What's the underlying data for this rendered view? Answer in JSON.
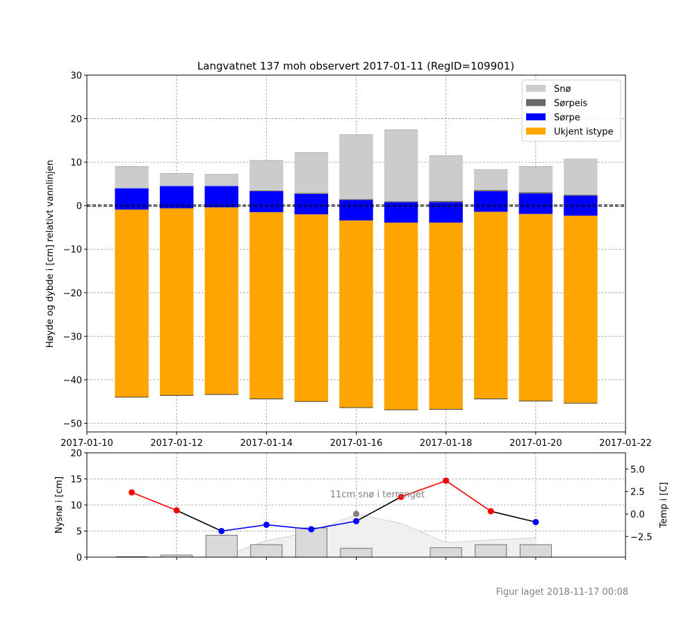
{
  "chart_data": [
    {
      "type": "bar",
      "title": "Langvatnet 137 moh observert 2017-01-11 (RegID=109901)",
      "ylabel": "Høyde og dybde i [cm] relativt vannlinjen",
      "xlim": [
        "2017-01-10",
        "2017-01-22"
      ],
      "ylim": [
        -52,
        30
      ],
      "yticks": [
        30,
        20,
        10,
        0,
        -10,
        -20,
        -30,
        -40,
        -50
      ],
      "ytick_labels": [
        "30",
        "20",
        "10",
        "0",
        "−10",
        "−20",
        "−30",
        "−40",
        "−50"
      ],
      "xticks": [
        "2017-01-10",
        "2017-01-12",
        "2017-01-14",
        "2017-01-16",
        "2017-01-18",
        "2017-01-20",
        "2017-01-22"
      ],
      "xtick_labels": [
        "2017-01-10",
        "2017-01-12",
        "2017-01-14",
        "2017-01-16",
        "2017-01-18",
        "2017-01-20",
        "2017-01-22"
      ],
      "grid": true,
      "waterline": 0,
      "legend": {
        "placement": "top-right",
        "entries": [
          {
            "label": "Snø",
            "color": "#cccccc"
          },
          {
            "label": "Sørpeis",
            "color": "#696969"
          },
          {
            "label": "Sørpe",
            "color": "#0000ff"
          },
          {
            "label": "Ukjent istype",
            "color": "#ffa500"
          }
        ]
      },
      "bars": [
        {
          "date": "2017-01-11",
          "layers": [
            {
              "type": "Ukjent istype",
              "bottom": -44.0,
              "top": -0.9
            },
            {
              "type": "Sørpe",
              "bottom": -0.9,
              "top": 4.0
            },
            {
              "type": "Snø",
              "bottom": 4.0,
              "top": 9.0
            }
          ]
        },
        {
          "date": "2017-01-12",
          "layers": [
            {
              "type": "Ukjent istype",
              "bottom": -43.6,
              "top": -0.6
            },
            {
              "type": "Sørpe",
              "bottom": -0.6,
              "top": 4.5
            },
            {
              "type": "Snø",
              "bottom": 4.5,
              "top": 7.4
            }
          ]
        },
        {
          "date": "2017-01-13",
          "layers": [
            {
              "type": "Ukjent istype",
              "bottom": -43.4,
              "top": -0.4
            },
            {
              "type": "Sørpe",
              "bottom": -0.4,
              "top": 4.5
            },
            {
              "type": "Snø",
              "bottom": 4.5,
              "top": 7.2
            }
          ]
        },
        {
          "date": "2017-01-14",
          "layers": [
            {
              "type": "Ukjent istype",
              "bottom": -44.4,
              "top": -1.5
            },
            {
              "type": "Sørpe",
              "bottom": -1.5,
              "top": 3.3
            },
            {
              "type": "Sørpeis",
              "bottom": 3.3,
              "top": 3.5
            },
            {
              "type": "Snø",
              "bottom": 3.5,
              "top": 10.4
            }
          ]
        },
        {
          "date": "2017-01-15",
          "layers": [
            {
              "type": "Ukjent istype",
              "bottom": -45.0,
              "top": -2.0
            },
            {
              "type": "Sørpe",
              "bottom": -2.0,
              "top": 2.7
            },
            {
              "type": "Sørpeis",
              "bottom": 2.7,
              "top": 2.9
            },
            {
              "type": "Snø",
              "bottom": 2.9,
              "top": 12.2
            }
          ]
        },
        {
          "date": "2017-01-16",
          "layers": [
            {
              "type": "Ukjent istype",
              "bottom": -46.4,
              "top": -3.4
            },
            {
              "type": "Sørpe",
              "bottom": -3.4,
              "top": 1.3
            },
            {
              "type": "Sørpeis",
              "bottom": 1.3,
              "top": 1.5
            },
            {
              "type": "Snø",
              "bottom": 1.5,
              "top": 16.3
            }
          ]
        },
        {
          "date": "2017-01-17",
          "layers": [
            {
              "type": "Ukjent istype",
              "bottom": -46.9,
              "top": -3.9
            },
            {
              "type": "Sørpe",
              "bottom": -3.9,
              "top": 0.8
            },
            {
              "type": "Sørpeis",
              "bottom": 0.8,
              "top": 1.0
            },
            {
              "type": "Snø",
              "bottom": 1.0,
              "top": 17.4
            }
          ]
        },
        {
          "date": "2017-01-18",
          "layers": [
            {
              "type": "Ukjent istype",
              "bottom": -46.8,
              "top": -3.9
            },
            {
              "type": "Sørpe",
              "bottom": -3.9,
              "top": 0.8
            },
            {
              "type": "Sørpeis",
              "bottom": 0.8,
              "top": 1.1
            },
            {
              "type": "Snø",
              "bottom": 1.1,
              "top": 11.5
            }
          ]
        },
        {
          "date": "2017-01-19",
          "layers": [
            {
              "type": "Ukjent istype",
              "bottom": -44.4,
              "top": -1.4
            },
            {
              "type": "Sørpe",
              "bottom": -1.4,
              "top": 3.3
            },
            {
              "type": "Sørpeis",
              "bottom": 3.3,
              "top": 3.6
            },
            {
              "type": "Snø",
              "bottom": 3.6,
              "top": 8.3
            }
          ]
        },
        {
          "date": "2017-01-20",
          "layers": [
            {
              "type": "Ukjent istype",
              "bottom": -44.9,
              "top": -1.9
            },
            {
              "type": "Sørpe",
              "bottom": -1.9,
              "top": 2.8
            },
            {
              "type": "Sørpeis",
              "bottom": 2.8,
              "top": 3.1
            },
            {
              "type": "Snø",
              "bottom": 3.1,
              "top": 9.0
            }
          ]
        },
        {
          "date": "2017-01-21",
          "layers": [
            {
              "type": "Ukjent istype",
              "bottom": -45.4,
              "top": -2.3
            },
            {
              "type": "Sørpe",
              "bottom": -2.3,
              "top": 2.3
            },
            {
              "type": "Sørpeis",
              "bottom": 2.3,
              "top": 2.5
            },
            {
              "type": "Snø",
              "bottom": 2.5,
              "top": 10.7
            }
          ]
        }
      ]
    },
    {
      "type": "bar",
      "ylabel": "Nysnø i [cm]",
      "y2label": "Temp i [C]",
      "ylim": [
        0,
        20
      ],
      "yticks": [
        0,
        5,
        10,
        15,
        20
      ],
      "ytick_labels": [
        "0",
        "5",
        "10",
        "15",
        "20"
      ],
      "y2lim": [
        -4.8,
        6.8
      ],
      "y2ticks": [
        -2.5,
        0,
        2.5,
        5
      ],
      "y2tick_labels": [
        "−2.5",
        "0.0",
        "2.5",
        "5.0"
      ],
      "xlim": [
        "2017-01-10",
        "2017-01-22"
      ],
      "grid": true,
      "annotation": "11cm snø i terrenget",
      "new_snow": [
        {
          "date": "2017-01-11",
          "value": 0.1
        },
        {
          "date": "2017-01-12",
          "value": 0.4
        },
        {
          "date": "2017-01-13",
          "value": 4.2
        },
        {
          "date": "2017-01-14",
          "value": 2.4
        },
        {
          "date": "2017-01-15",
          "value": 5.6
        },
        {
          "date": "2017-01-16",
          "value": 1.7
        },
        {
          "date": "2017-01-18",
          "value": 1.8
        },
        {
          "date": "2017-01-19",
          "value": 2.4
        },
        {
          "date": "2017-01-20",
          "value": 2.4
        }
      ],
      "snow_depth": {
        "dates": [
          "2017-01-13",
          "2017-01-14",
          "2017-01-15",
          "2017-01-16",
          "2017-01-17",
          "2017-01-18",
          "2017-01-19",
          "2017-01-20"
        ],
        "values": [
          0,
          3.2,
          4.8,
          8.2,
          6.5,
          2.8,
          3.3,
          3.7
        ]
      },
      "temperature": {
        "dates": [
          "2017-01-11",
          "2017-01-12",
          "2017-01-13",
          "2017-01-14",
          "2017-01-15",
          "2017-01-16",
          "2017-01-17",
          "2017-01-18",
          "2017-01-19",
          "2017-01-20"
        ],
        "values": [
          2.4,
          0.4,
          -1.9,
          -1.2,
          -1.7,
          -0.8,
          1.9,
          3.7,
          0.3,
          -0.9
        ],
        "point_colors": [
          "red",
          "red",
          "blue",
          "blue",
          "blue",
          "blue",
          "red",
          "red",
          "red",
          "blue"
        ]
      },
      "observation_marker": {
        "date": "2017-01-16",
        "value": 8.3
      }
    }
  ],
  "footer": "Figur laget 2018-11-17 00:08"
}
